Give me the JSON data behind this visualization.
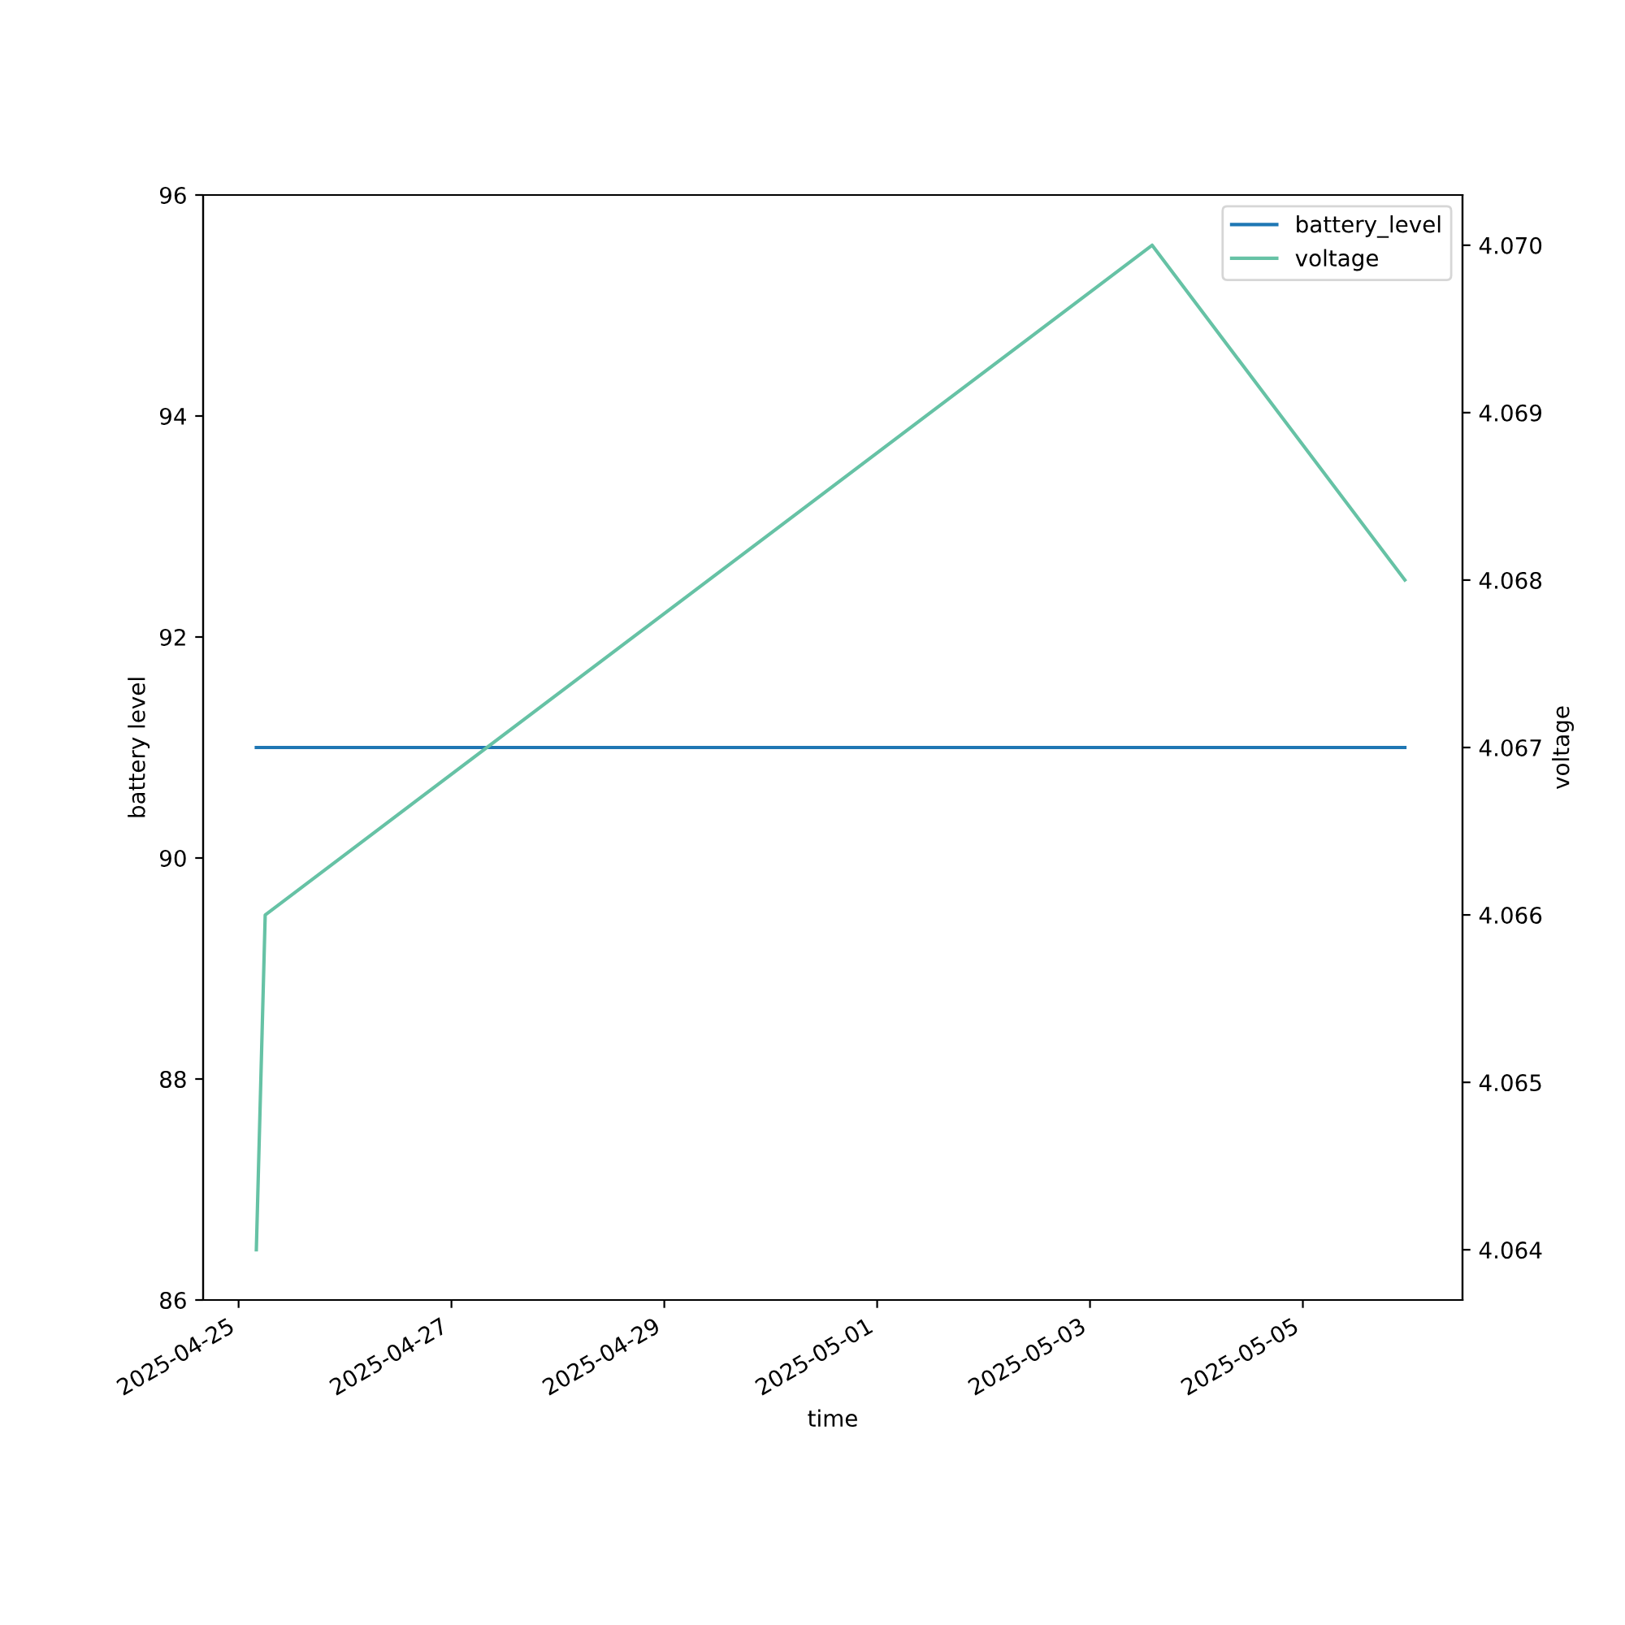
{
  "chart_data": {
    "type": "line",
    "xlabel": "time",
    "ylabel": "battery level",
    "y2label": "voltage",
    "series": [
      {
        "name": "battery_level",
        "color": "#1f77b4",
        "x": [
          "2025-04-25T04:00",
          "2025-05-05T23:00"
        ],
        "values": [
          91,
          91
        ]
      },
      {
        "name": "voltage",
        "color": "#66c2a5",
        "axis": "y2",
        "x": [
          "2025-04-25T04:00",
          "2025-04-25T06:00",
          "2025-05-03T14:00",
          "2025-05-05T23:00"
        ],
        "values": [
          4.064,
          4.066,
          4.07,
          4.068
        ]
      }
    ],
    "xlim": [
      "2025-04-24T16:00",
      "2025-05-06T12:00"
    ],
    "xticks": [
      "2025-04-25",
      "2025-04-27",
      "2025-04-29",
      "2025-05-01",
      "2025-05-03",
      "2025-05-05"
    ],
    "ylim": [
      86,
      96
    ],
    "yticks": [
      86,
      88,
      90,
      92,
      94,
      96
    ],
    "y2lim": [
      4.0637,
      4.0703
    ],
    "y2ticks": [
      4.064,
      4.065,
      4.066,
      4.067,
      4.068,
      4.069,
      {
        "value": 4.07,
        "label": "4.070"
      }
    ],
    "legend": "top right"
  }
}
